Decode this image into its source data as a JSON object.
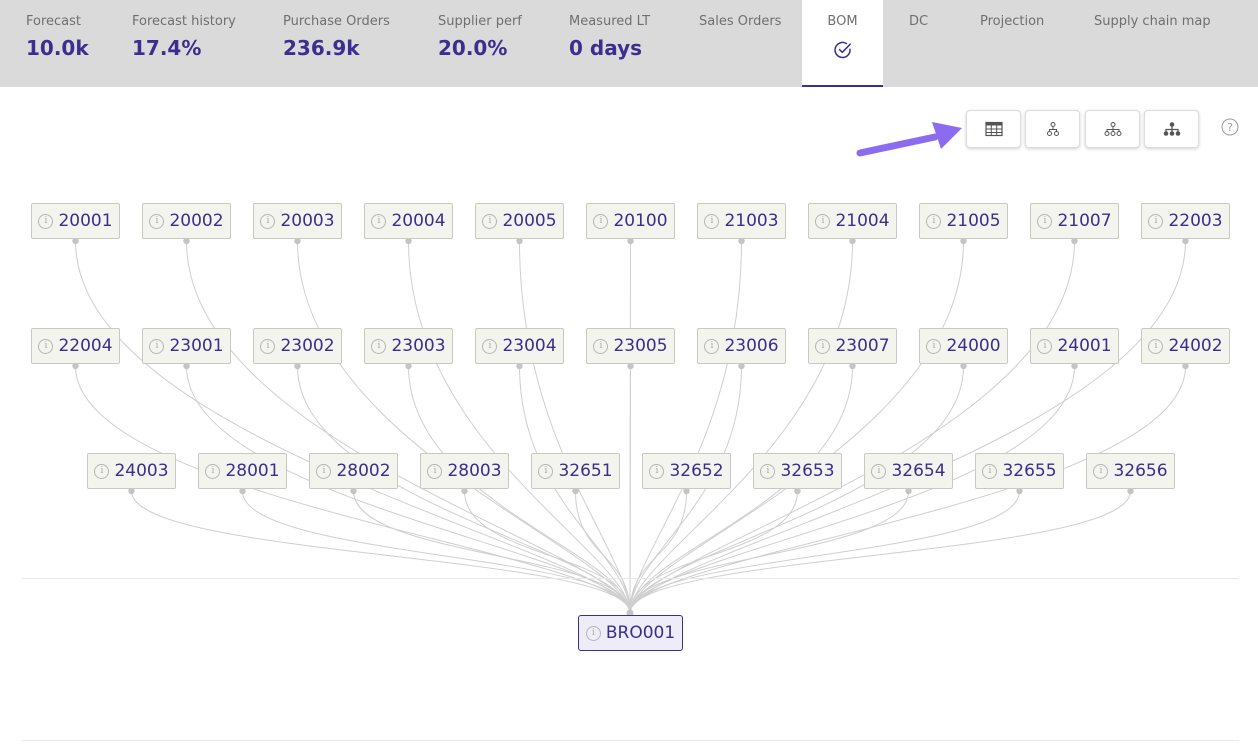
{
  "tabs": [
    {
      "label": "Forecast",
      "value": "10.0k"
    },
    {
      "label": "Forecast history",
      "value": "17.4%"
    },
    {
      "label": "Purchase Orders",
      "value": "236.9k"
    },
    {
      "label": "Supplier perf",
      "value": "20.0%"
    },
    {
      "label": "Measured LT",
      "value": "0 days"
    },
    {
      "label": "Sales Orders",
      "value": ""
    },
    {
      "label": "BOM",
      "value": "",
      "active": true,
      "icon": "check-circle-icon"
    },
    {
      "label": "DC",
      "value": ""
    },
    {
      "label": "Projection",
      "value": ""
    },
    {
      "label": "Supply chain map",
      "value": ""
    }
  ],
  "view_buttons": [
    {
      "name": "table-view-button",
      "icon": "table-icon"
    },
    {
      "name": "tree-small-view-button",
      "icon": "tree-small-icon"
    },
    {
      "name": "tree-wide-view-button",
      "icon": "tree-wide-icon"
    },
    {
      "name": "tree-filled-view-button",
      "icon": "tree-filled-icon"
    }
  ],
  "help_icon": "question-circle-icon",
  "annotation_arrow_color": "#8b6cf0",
  "info_glyph": "i",
  "bom": {
    "rows": [
      [
        "20001",
        "20002",
        "20003",
        "20004",
        "20005",
        "20100",
        "21003",
        "21004",
        "21005",
        "21007",
        "22003"
      ],
      [
        "22004",
        "23001",
        "23002",
        "23003",
        "23004",
        "23005",
        "23006",
        "23007",
        "24000",
        "24001",
        "24002"
      ],
      [
        "24003",
        "28001",
        "28002",
        "28003",
        "32651",
        "32652",
        "32653",
        "32654",
        "32655",
        "32656"
      ]
    ],
    "root": "BRO001"
  },
  "colors": {
    "accent": "#3b2e8e",
    "tabbar_bg": "#dadada",
    "node_bg": "#f4f4ef",
    "edge": "#cfcfcf"
  }
}
